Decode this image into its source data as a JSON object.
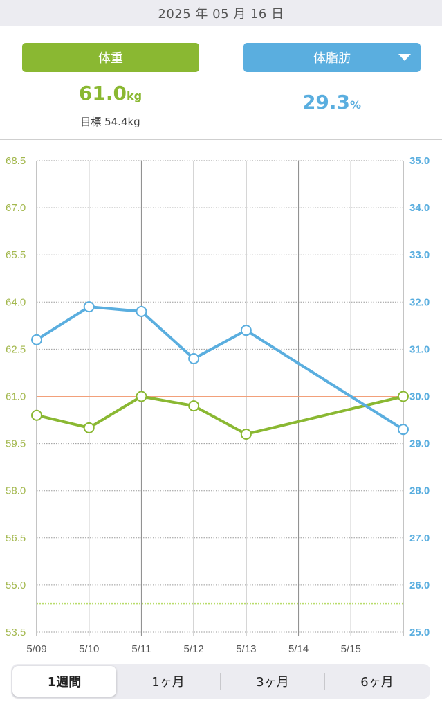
{
  "header": {
    "date": "2025 年 05 月 16 日"
  },
  "weight_panel": {
    "button_label": "体重",
    "value": "61.0",
    "unit": "kg",
    "target_label": "目標",
    "target_value": "54.4kg"
  },
  "fat_panel": {
    "button_label": "体脂肪",
    "value": "29.3",
    "unit": "%"
  },
  "colors": {
    "weight": "#8ab832",
    "fat": "#5aaedf",
    "target_line": "#f2a07a",
    "goal_line": "#b8dc6a"
  },
  "tabs": [
    {
      "label": "1週間",
      "active": true
    },
    {
      "label": "1ヶ月",
      "active": false
    },
    {
      "label": "3ヶ月",
      "active": false
    },
    {
      "label": "6ヶ月",
      "active": false
    }
  ],
  "chart_data": {
    "type": "line",
    "x": [
      "5/09",
      "5/10",
      "5/11",
      "5/12",
      "5/13",
      "5/14",
      "5/15",
      "5/16"
    ],
    "x_tick_labels": [
      "5/09",
      "5/10",
      "5/11",
      "5/12",
      "5/13",
      "5/14",
      "5/15"
    ],
    "left_axis": {
      "ylim": [
        53.5,
        68.5
      ],
      "ticks": [
        "53.5",
        "55.0",
        "56.5",
        "58.0",
        "59.5",
        "61.0",
        "62.5",
        "64.0",
        "65.5",
        "67.0",
        "68.5"
      ]
    },
    "right_axis": {
      "ylim": [
        25.0,
        35.0
      ],
      "ticks": [
        "25.0",
        "26.0",
        "27.0",
        "28.0",
        "29.0",
        "30.0",
        "31.0",
        "32.0",
        "33.0",
        "34.0",
        "35.0"
      ]
    },
    "series": [
      {
        "axis": "left",
        "color": "#8ab832",
        "points": [
          {
            "x": "5/09",
            "y": 60.4
          },
          {
            "x": "5/10",
            "y": 60.0
          },
          {
            "x": "5/11",
            "y": 61.0
          },
          {
            "x": "5/12",
            "y": 60.7
          },
          {
            "x": "5/13",
            "y": 59.8
          },
          {
            "x": "5/16",
            "y": 61.0
          }
        ]
      },
      {
        "axis": "right",
        "color": "#5aaedf",
        "points": [
          {
            "x": "5/09",
            "y": 31.2
          },
          {
            "x": "5/10",
            "y": 31.9
          },
          {
            "x": "5/11",
            "y": 31.8
          },
          {
            "x": "5/12",
            "y": 30.8
          },
          {
            "x": "5/13",
            "y": 31.4
          },
          {
            "x": "5/16",
            "y": 29.3
          }
        ]
      }
    ],
    "reference_lines": [
      {
        "axis": "left",
        "y": 61.0,
        "style": "solid",
        "color": "#f2a07a"
      },
      {
        "axis": "left",
        "y": 54.4,
        "style": "dotted",
        "color": "#b8dc6a"
      }
    ],
    "grid": true
  }
}
